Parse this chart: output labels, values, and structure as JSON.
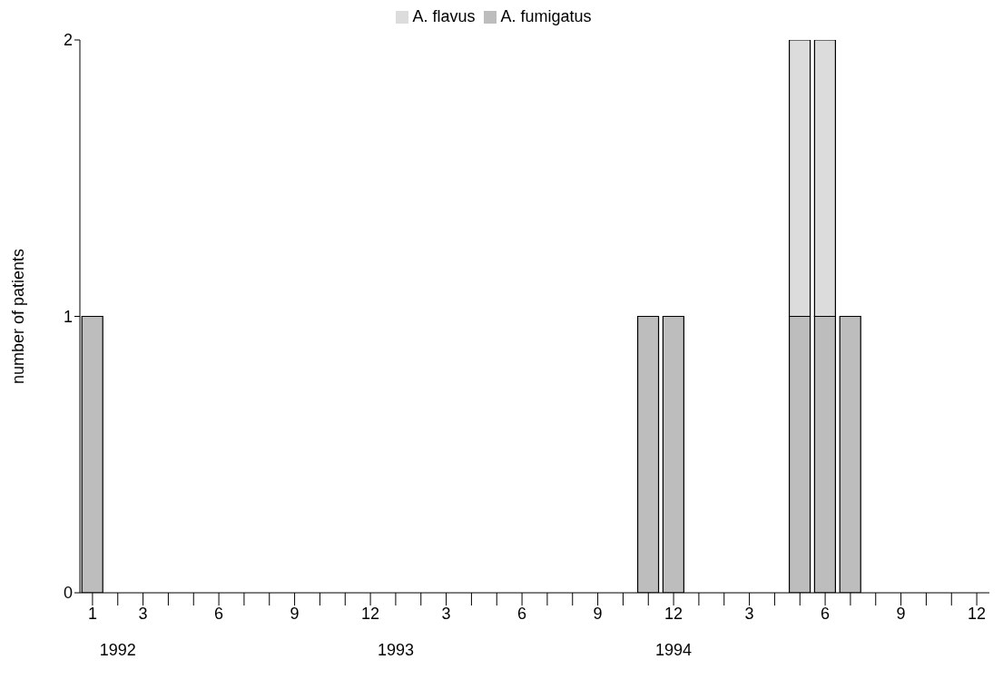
{
  "chart_data": {
    "type": "bar",
    "ylabel": "number of patients",
    "stacked": true,
    "legend": "top",
    "grid": false,
    "categories": [
      "1",
      null,
      "3",
      null,
      null,
      "6",
      null,
      null,
      "9",
      null,
      null,
      "12",
      null,
      null,
      "3",
      null,
      null,
      "6",
      null,
      null,
      "9",
      null,
      null,
      "12",
      null,
      null,
      "3",
      null,
      null,
      "6",
      null,
      null,
      "9",
      null,
      null,
      "12"
    ],
    "series": [
      {
        "name": "A. fumigatus",
        "color": "#bdbdbd",
        "values": [
          1,
          0,
          0,
          0,
          0,
          0,
          0,
          0,
          0,
          0,
          0,
          0,
          0,
          0,
          0,
          0,
          0,
          0,
          0,
          0,
          0,
          0,
          1,
          1,
          0,
          0,
          0,
          0,
          1,
          1,
          1,
          0,
          0,
          0,
          0,
          0
        ]
      },
      {
        "name": "A. flavus",
        "color": "#dcdcdc",
        "values": [
          0,
          0,
          0,
          0,
          0,
          0,
          0,
          0,
          0,
          0,
          0,
          0,
          0,
          0,
          0,
          0,
          0,
          0,
          0,
          0,
          0,
          0,
          0,
          0,
          0,
          0,
          0,
          0,
          1,
          1,
          0,
          0,
          0,
          0,
          0,
          0
        ]
      }
    ],
    "ylim": [
      0,
      2
    ],
    "yticks": [
      0,
      1,
      2
    ],
    "annotations": [
      "1992",
      "1993",
      "1994"
    ]
  }
}
